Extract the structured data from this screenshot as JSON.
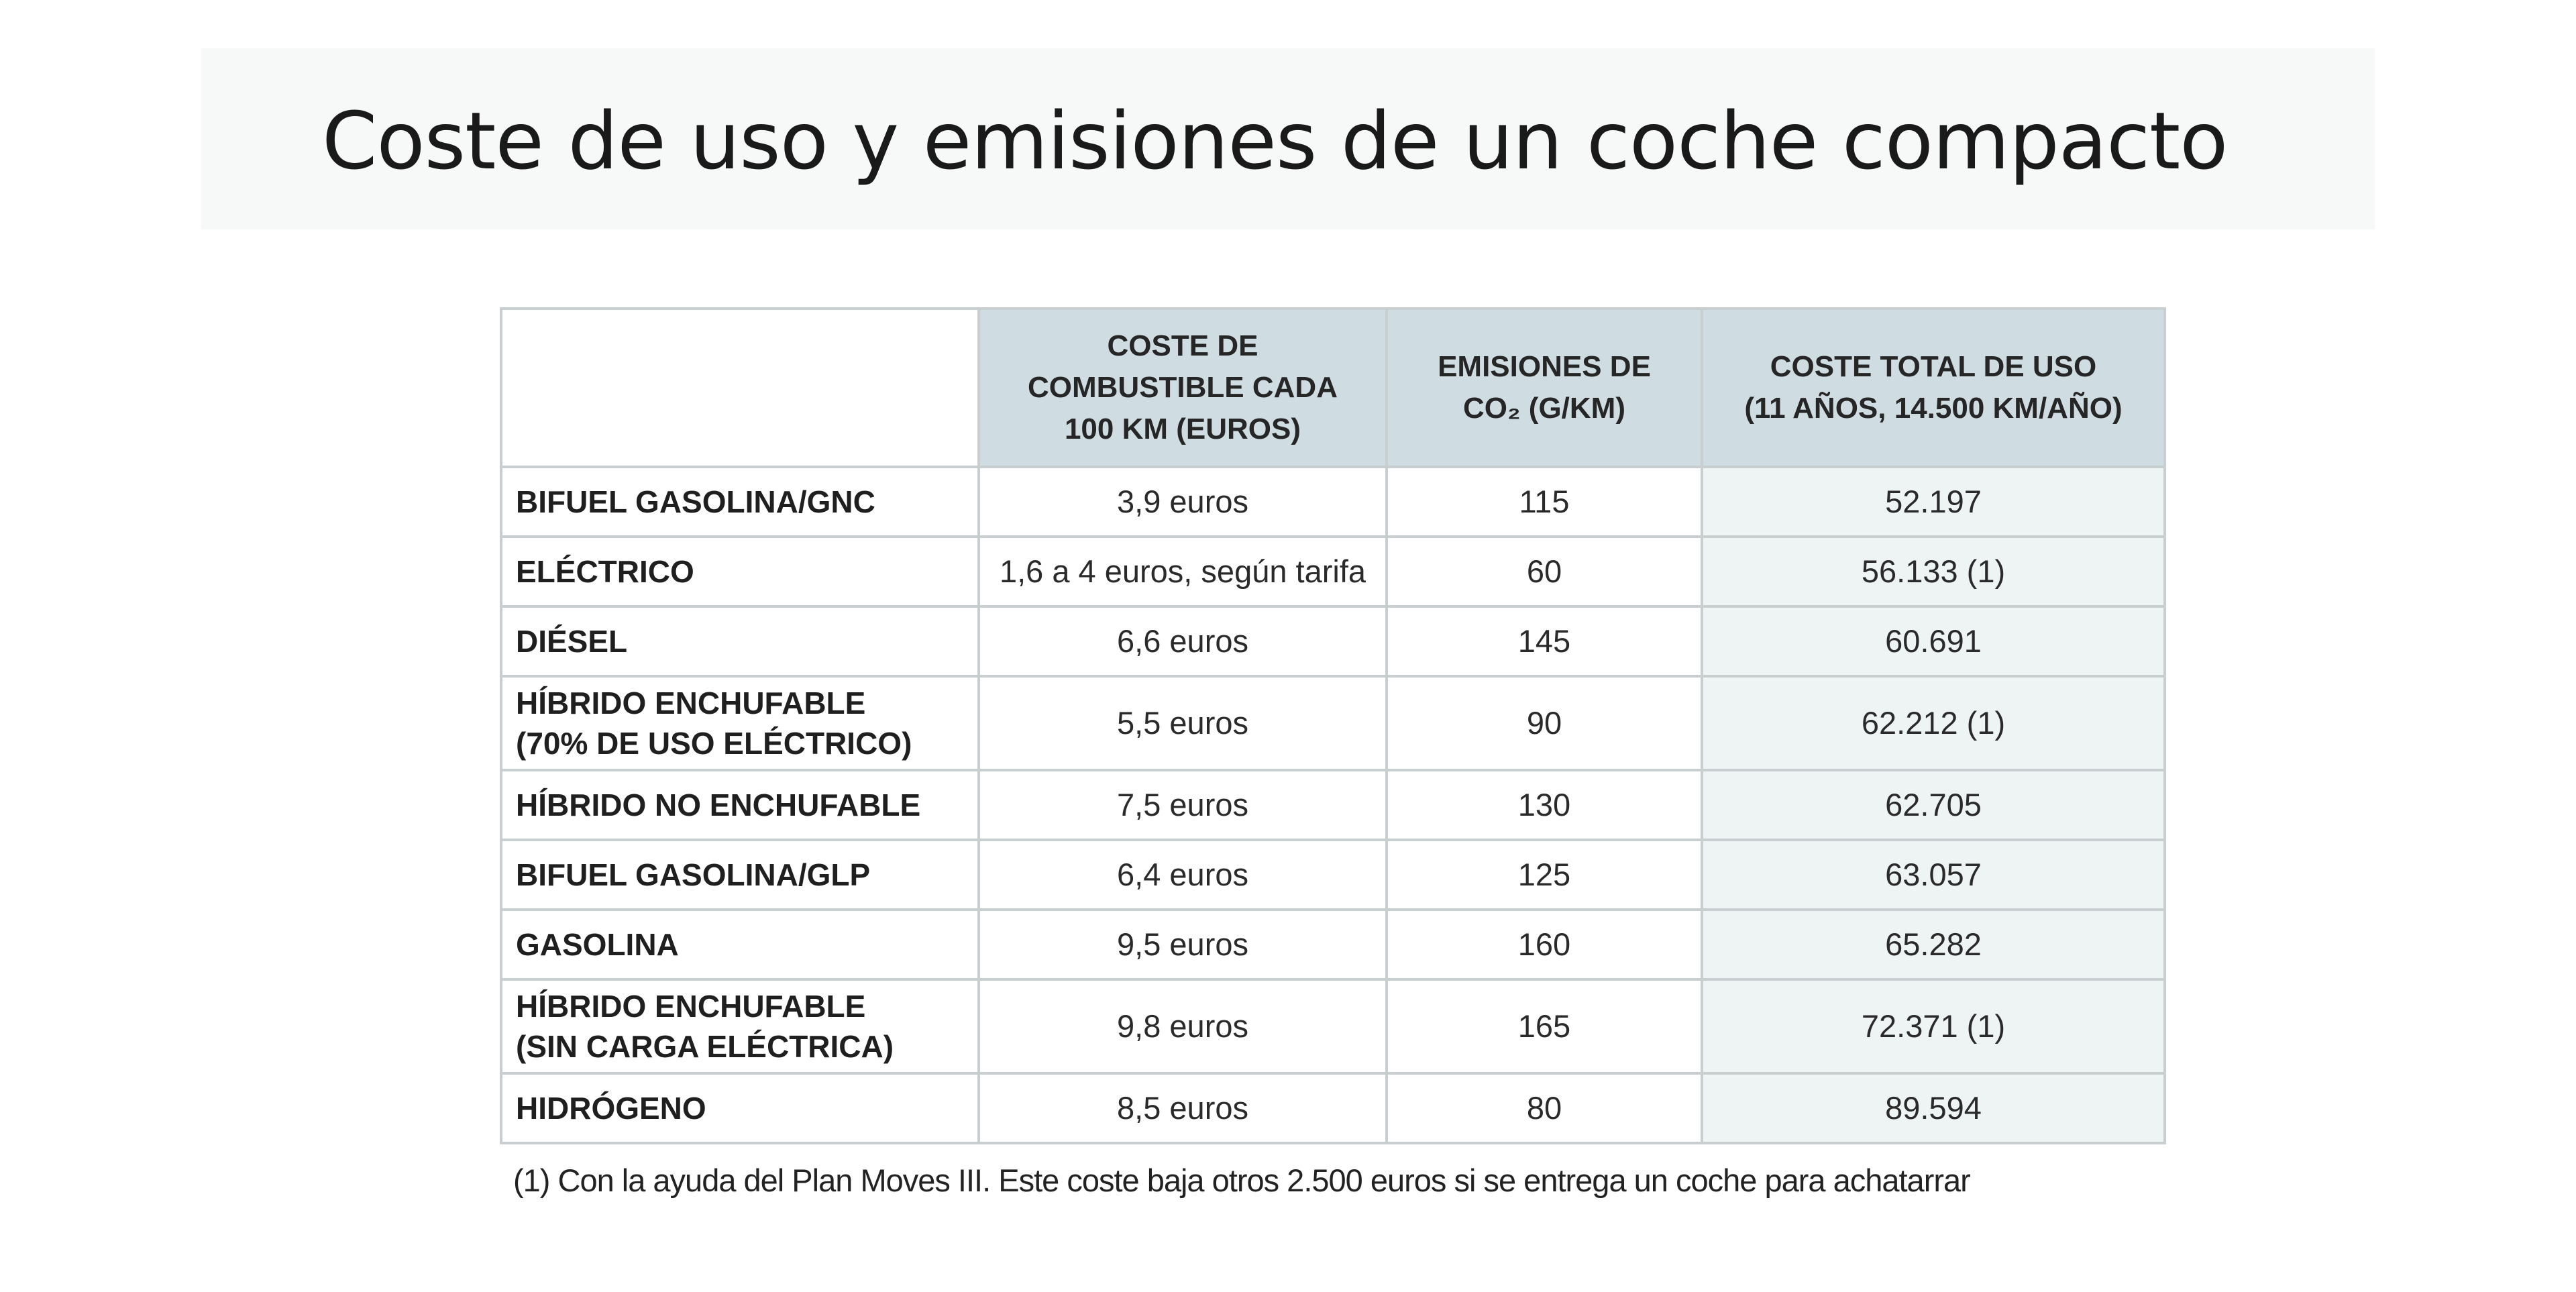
{
  "title": "Coste de uso y emisiones de un coche compacto",
  "chart_data": {
    "type": "table",
    "title": "Coste de uso y emisiones de un coche compacto",
    "columns": [
      "COSTE DE COMBUSTIBLE CADA 100 KM (EUROS)",
      "EMISIONES DE CO₂ (G/KM)",
      "COSTE TOTAL DE USO (11 AÑOS, 14.500 KM/AÑO)"
    ],
    "header_lines": [
      [
        "COSTE DE",
        "COMBUSTIBLE CADA",
        "100 KM (EUROS)"
      ],
      [
        "EMISIONES DE",
        "CO₂ (G/KM)"
      ],
      [
        "COSTE TOTAL DE USO",
        "(11 AÑOS, 14.500 KM/AÑO)"
      ]
    ],
    "rows": [
      {
        "label_lines": [
          "BIFUEL GASOLINA/GNC"
        ],
        "fuel_cost": "3,9 euros",
        "co2": "115",
        "total_cost": "52.197"
      },
      {
        "label_lines": [
          "ELÉCTRICO"
        ],
        "fuel_cost": "1,6 a 4 euros, según tarifa",
        "co2": "60",
        "total_cost": "56.133 (1)"
      },
      {
        "label_lines": [
          "DIÉSEL"
        ],
        "fuel_cost": "6,6 euros",
        "co2": "145",
        "total_cost": "60.691"
      },
      {
        "label_lines": [
          "HÍBRIDO ENCHUFABLE",
          "(70% DE USO ELÉCTRICO)"
        ],
        "fuel_cost": "5,5 euros",
        "co2": "90",
        "total_cost": "62.212 (1)"
      },
      {
        "label_lines": [
          "HÍBRIDO NO ENCHUFABLE"
        ],
        "fuel_cost": "7,5 euros",
        "co2": "130",
        "total_cost": "62.705"
      },
      {
        "label_lines": [
          "BIFUEL GASOLINA/GLP"
        ],
        "fuel_cost": "6,4 euros",
        "co2": "125",
        "total_cost": "63.057"
      },
      {
        "label_lines": [
          "GASOLINA"
        ],
        "fuel_cost": "9,5 euros",
        "co2": "160",
        "total_cost": "65.282"
      },
      {
        "label_lines": [
          "HÍBRIDO ENCHUFABLE",
          "(SIN CARGA ELÉCTRICA)"
        ],
        "fuel_cost": "9,8 euros",
        "co2": "165",
        "total_cost": "72.371 (1)"
      },
      {
        "label_lines": [
          "HIDRÓGENO"
        ],
        "fuel_cost": "8,5 euros",
        "co2": "80",
        "total_cost": "89.594"
      }
    ],
    "footnote": "(1) Con la ayuda del Plan Moves III. Este coste baja otros 2.500 euros si se entrega un coche para achatarrar"
  }
}
